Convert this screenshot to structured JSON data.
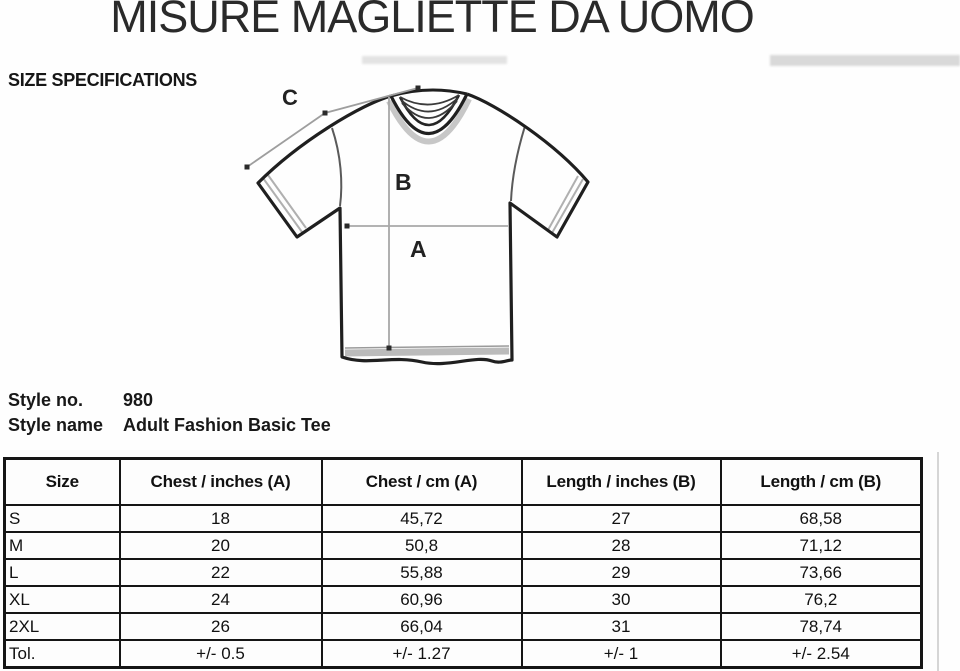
{
  "page": {
    "title": "MISURE MAGLIETTE DA UOMO",
    "subtitle": "SIZE SPECIFICATIONS"
  },
  "style_info": {
    "style_no_label": "Style no.",
    "style_no_value": "980",
    "style_name_label": "Style name",
    "style_name_value": "Adult Fashion Basic Tee"
  },
  "diagram": {
    "chest_label": "A",
    "length_label": "B",
    "sleeve_label": "C"
  },
  "size_table": {
    "columns": [
      "Size",
      "Chest / inches (A)",
      "Chest / cm (A)",
      "Length / inches (B)",
      "Length / cm (B)"
    ],
    "rows": [
      [
        "S",
        "18",
        "45,72",
        "27",
        "68,58"
      ],
      [
        "M",
        "20",
        "50,8",
        "28",
        "71,12"
      ],
      [
        "L",
        "22",
        "55,88",
        "29",
        "73,66"
      ],
      [
        "XL",
        "24",
        "60,96",
        "30",
        "76,2"
      ],
      [
        "2XL",
        "26",
        "66,04",
        "31",
        "78,74"
      ],
      [
        "Tol.",
        "+/- 0.5",
        "+/- 1.27",
        "+/- 1",
        "+/- 2.54"
      ]
    ]
  }
}
